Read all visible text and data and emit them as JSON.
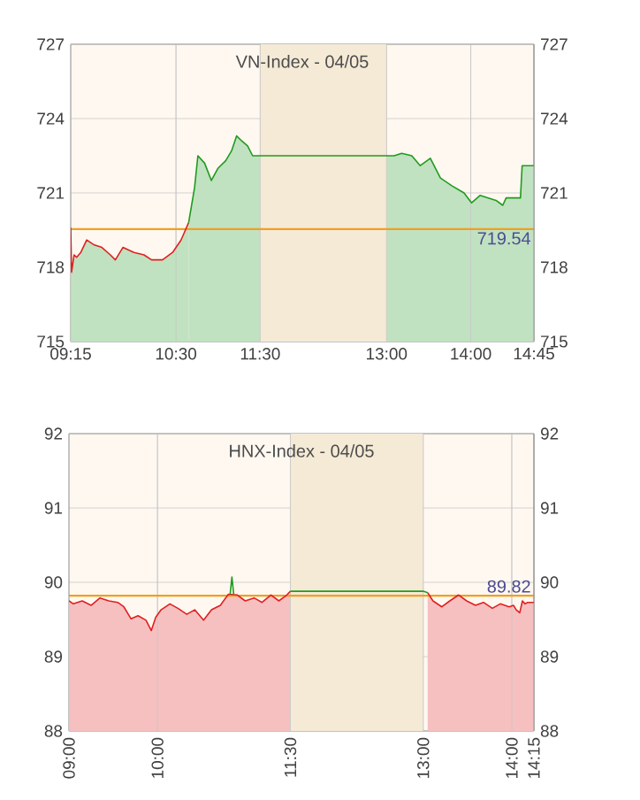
{
  "chart_data": [
    {
      "type": "area",
      "title": "VN-Index - 04/05",
      "xlim": [
        9.25,
        14.75
      ],
      "xticks": [
        {
          "value": 9.25,
          "label": "09:15"
        },
        {
          "value": 10.5,
          "label": "10:30"
        },
        {
          "value": 11.5,
          "label": "11:30"
        },
        {
          "value": 13,
          "label": "13:00"
        },
        {
          "value": 14,
          "label": "14:00"
        },
        {
          "value": 14.75,
          "label": "14:45"
        }
      ],
      "ylim": [
        715,
        727
      ],
      "yticks": [
        715,
        718,
        721,
        724,
        727
      ],
      "y2lim": [
        715,
        727
      ],
      "y2ticks": [
        715,
        718,
        721,
        724,
        727
      ],
      "grid": true,
      "legend": false,
      "series": [
        {
          "color": "#e02020",
          "x": [
            9.25,
            9.26,
            9.29,
            9.32,
            9.37,
            9.44,
            9.53,
            9.62,
            9.72,
            9.78,
            9.87,
            10.0,
            10.12,
            10.21,
            10.34,
            10.46,
            10.56,
            10.65
          ],
          "values": [
            719.6,
            717.8,
            718.5,
            718.4,
            718.6,
            719.1,
            718.9,
            718.8,
            718.5,
            718.3,
            718.8,
            718.6,
            718.5,
            718.3,
            718.3,
            718.6,
            719.1,
            719.8
          ]
        },
        {
          "color": "#1f9a1f",
          "x": [
            10.65,
            10.72,
            10.76,
            10.84,
            10.92,
            11.0,
            11.09,
            11.16,
            11.22,
            11.28,
            11.35,
            11.41,
            11.49,
            13.09,
            13.18,
            13.3,
            13.4,
            13.52,
            13.64,
            13.77,
            13.92,
            14.01,
            14.11,
            14.2,
            14.3,
            14.38,
            14.42,
            14.59,
            14.61,
            14.75
          ],
          "values": [
            719.8,
            721.2,
            722.5,
            722.2,
            721.5,
            722.0,
            722.3,
            722.7,
            723.3,
            723.1,
            722.9,
            722.5,
            722.5,
            722.5,
            722.6,
            722.5,
            722.1,
            722.4,
            721.6,
            721.3,
            721.0,
            720.6,
            720.9,
            720.8,
            720.7,
            720.5,
            720.8,
            720.8,
            722.1,
            722.1
          ]
        }
      ],
      "ref_lines": [
        {
          "axis": "y",
          "value": 719.54,
          "label": "719.54",
          "color": "#f0a020"
        }
      ],
      "bands": [
        {
          "axis": "x",
          "from": 11.5,
          "to": 13,
          "color": "#f5ead6"
        }
      ]
    },
    {
      "type": "area",
      "title": "HNX-Index - 04/05",
      "xlim": [
        9,
        14.25
      ],
      "xticks": [
        {
          "value": 9,
          "label": "09:00"
        },
        {
          "value": 10,
          "label": "10:00"
        },
        {
          "value": 11.5,
          "label": "11:30"
        },
        {
          "value": 13,
          "label": "13:00"
        },
        {
          "value": 14,
          "label": "14:00"
        },
        {
          "value": 14.25,
          "label": "14:15"
        }
      ],
      "ylim": [
        88,
        92
      ],
      "yticks": [
        88,
        89,
        90,
        91,
        92
      ],
      "y2lim": [
        88,
        92
      ],
      "y2ticks": [
        88,
        89,
        90,
        91,
        92
      ],
      "grid": true,
      "legend": false,
      "series": [
        {
          "color": "#e02020",
          "x": [
            9.0,
            9.05,
            9.15,
            9.25,
            9.35,
            9.45,
            9.55,
            9.62,
            9.7,
            9.78,
            9.87,
            9.93,
            9.98,
            10.04,
            10.14,
            10.23,
            10.33,
            10.42,
            10.52,
            10.61,
            10.71,
            10.8,
            10.9,
            10.99,
            11.09,
            11.18,
            11.28,
            11.37,
            11.46,
            11.5
          ],
          "values": [
            89.75,
            89.71,
            89.75,
            89.69,
            89.79,
            89.75,
            89.73,
            89.67,
            89.51,
            89.55,
            89.49,
            89.35,
            89.53,
            89.63,
            89.71,
            89.65,
            89.57,
            89.63,
            89.49,
            89.63,
            89.69,
            89.84,
            89.83,
            89.75,
            89.79,
            89.73,
            89.83,
            89.75,
            89.83,
            89.88
          ]
        },
        {
          "type": "line",
          "color": "#1f9a1f",
          "x": [
            10.82,
            10.84,
            10.86
          ],
          "values": [
            89.84,
            90.07,
            89.84
          ]
        },
        {
          "type": "line",
          "color": "#1f9a1f",
          "x": [
            11.5,
            13.0,
            13.05
          ],
          "values": [
            89.88,
            89.88,
            89.86
          ]
        },
        {
          "color": "#e02020",
          "x": [
            13.05,
            13.11,
            13.21,
            13.3,
            13.4,
            13.49,
            13.59,
            13.68,
            13.78,
            13.87,
            13.97,
            14.02,
            14.05,
            14.09,
            14.12,
            14.15,
            14.18,
            14.25
          ],
          "values": [
            89.86,
            89.75,
            89.67,
            89.75,
            89.83,
            89.75,
            89.69,
            89.73,
            89.65,
            89.71,
            89.67,
            89.69,
            89.63,
            89.59,
            89.75,
            89.71,
            89.73,
            89.73
          ]
        }
      ],
      "ref_lines": [
        {
          "axis": "y",
          "value": 89.82,
          "label": "89.82",
          "color": "#f0a020"
        }
      ],
      "bands": [
        {
          "axis": "x",
          "from": 11.5,
          "to": 13,
          "color": "#f5ead6"
        }
      ]
    }
  ]
}
